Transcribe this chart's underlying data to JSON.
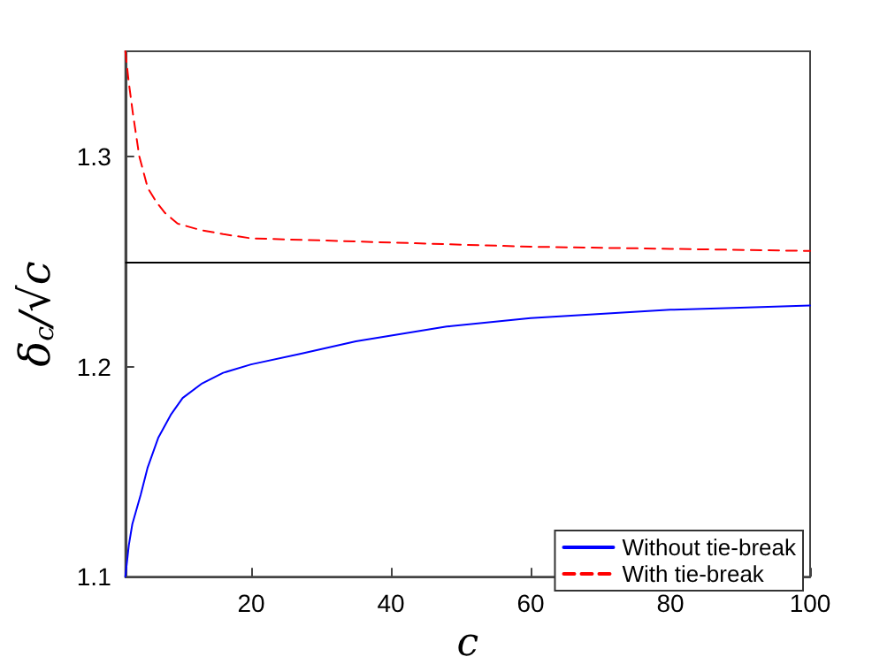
{
  "chart_data": {
    "type": "line",
    "xlabel": "c",
    "ylabel": "δ$_{c}$/√c",
    "xlim": [
      2,
      100
    ],
    "ylim": [
      1.1,
      1.35
    ],
    "xticks": [
      20,
      40,
      60,
      80,
      100
    ],
    "yticks": [
      1.1,
      1.2,
      1.3
    ],
    "grid": false,
    "legend": "bottom right",
    "marker": "none",
    "series": [
      {
        "name": "Without tie-break",
        "color": "#0000ff",
        "line_style": "solid",
        "x": [
          2,
          2.5,
          3,
          4.2,
          5.2,
          6.7,
          8.5,
          10.2,
          13,
          16,
          20,
          27,
          35,
          48,
          60,
          70,
          80,
          90,
          100
        ],
        "values": [
          1.1,
          1.115,
          1.125,
          1.139,
          1.152,
          1.166,
          1.177,
          1.185,
          1.192,
          1.197,
          1.201,
          1.206,
          1.212,
          1.219,
          1.223,
          1.225,
          1.227,
          1.228,
          1.229
        ]
      },
      {
        "name": "With tie-break",
        "color": "#ff0000",
        "line_style": "dashed",
        "x": [
          2,
          2.5,
          3.1,
          4,
          5.2,
          6.5,
          7.7,
          9.5,
          12.7,
          16,
          20,
          30,
          40,
          60,
          80,
          100
        ],
        "values": [
          1.35,
          1.335,
          1.32,
          1.3,
          1.285,
          1.278,
          1.273,
          1.268,
          1.265,
          1.263,
          1.261,
          1.26,
          1.259,
          1.257,
          1.256,
          1.255
        ]
      }
    ],
    "ref_lines": [
      {
        "axis": "y",
        "value": 1.25,
        "color": "#000000",
        "line_style": "solid"
      }
    ]
  }
}
